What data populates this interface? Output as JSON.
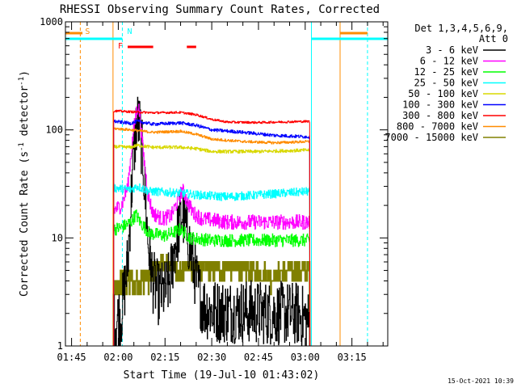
{
  "chart_data": {
    "type": "line",
    "title": "RHESSI Observing Summary Count Rates, Corrected",
    "xlabel": "Start Time (19-Jul-10 01:43:02)",
    "ylabel_main": "Corrected Count Rate (s",
    "ylabel_sup1": "-1",
    "ylabel_mid": " detector",
    "ylabel_sup2": "-1",
    "ylabel_end": ")",
    "y_scale": "log",
    "ylim": [
      1,
      1000
    ],
    "y_ticks": [
      {
        "value": 1,
        "label": "1"
      },
      {
        "value": 10,
        "label": "10"
      },
      {
        "value": 100,
        "label": "100"
      },
      {
        "value": 1000,
        "label": "1000"
      }
    ],
    "x_ticks": [
      {
        "min": 105,
        "label": "01:45"
      },
      {
        "min": 120,
        "label": "02:00"
      },
      {
        "min": 135,
        "label": "02:15"
      },
      {
        "min": 150,
        "label": "02:30"
      },
      {
        "min": 165,
        "label": "02:45"
      },
      {
        "min": 180,
        "label": "03:00"
      },
      {
        "min": 195,
        "label": "03:15"
      }
    ],
    "x_range_min": [
      103.03,
      206.5
    ],
    "legend_placement": "right",
    "detectors": "Det 1,3,4,5,6,9,",
    "attenuator": "Att 0",
    "date_stamp": "15-Oct-2021 10:39",
    "series": [
      {
        "name": "3 - 6 keV",
        "color": "#000000",
        "noise": 0.3,
        "points": [
          [
            118.5,
            1.6
          ],
          [
            121,
            2.0
          ],
          [
            123,
            6
          ],
          [
            124.5,
            40
          ],
          [
            125.6,
            105
          ],
          [
            126.3,
            120
          ],
          [
            127,
            100
          ],
          [
            128,
            45
          ],
          [
            129.5,
            9
          ],
          [
            131,
            4
          ],
          [
            133,
            3
          ],
          [
            135,
            3.2
          ],
          [
            136.5,
            4
          ],
          [
            138,
            8
          ],
          [
            139.5,
            13
          ],
          [
            140.5,
            17
          ],
          [
            141.5,
            13
          ],
          [
            143,
            8
          ],
          [
            145,
            4
          ],
          [
            147,
            2.4
          ],
          [
            150,
            2.1
          ],
          [
            160,
            2.1
          ],
          [
            170,
            2.0
          ],
          [
            177,
            2.0
          ],
          [
            180,
            1.8
          ],
          [
            181.5,
            1.6
          ]
        ]
      },
      {
        "name": "6 - 12 keV",
        "color": "#ff00ff",
        "noise": 0.07,
        "points": [
          [
            118.5,
            18
          ],
          [
            121,
            20
          ],
          [
            123,
            30
          ],
          [
            124.5,
            80
          ],
          [
            125.6,
            140
          ],
          [
            126.3,
            170
          ],
          [
            127,
            130
          ],
          [
            128,
            60
          ],
          [
            129.5,
            25
          ],
          [
            131,
            17
          ],
          [
            134,
            15
          ],
          [
            137,
            16
          ],
          [
            139,
            22
          ],
          [
            140.5,
            28
          ],
          [
            142,
            22
          ],
          [
            144,
            17
          ],
          [
            147,
            15
          ],
          [
            155,
            14
          ],
          [
            170,
            14
          ],
          [
            177,
            14
          ],
          [
            181.5,
            14
          ]
        ]
      },
      {
        "name": "12 - 25 keV",
        "color": "#00ff00",
        "noise": 0.06,
        "points": [
          [
            118.5,
            12
          ],
          [
            121,
            12.5
          ],
          [
            124,
            14
          ],
          [
            125.6,
            16.5
          ],
          [
            127,
            14
          ],
          [
            130,
            11
          ],
          [
            135,
            10.5
          ],
          [
            140,
            12
          ],
          [
            143,
            10
          ],
          [
            150,
            9.5
          ],
          [
            165,
            9.5
          ],
          [
            181.5,
            9.5
          ]
        ]
      },
      {
        "name": "25 - 50 keV",
        "color": "#00ffff",
        "noise": 0.04,
        "points": [
          [
            118.5,
            29
          ],
          [
            124,
            28
          ],
          [
            126,
            30
          ],
          [
            130,
            27
          ],
          [
            140,
            26
          ],
          [
            145,
            25
          ],
          [
            155,
            24
          ],
          [
            165,
            25
          ],
          [
            181.5,
            27
          ]
        ]
      },
      {
        "name": "50 - 100 keV",
        "color": "#d8d800",
        "noise": 0.015,
        "points": [
          [
            118.5,
            70
          ],
          [
            124,
            69
          ],
          [
            126,
            72
          ],
          [
            131,
            69
          ],
          [
            140,
            69
          ],
          [
            145,
            67
          ],
          [
            150,
            63
          ],
          [
            165,
            63
          ],
          [
            181.5,
            65
          ]
        ]
      },
      {
        "name": "100 - 300 keV",
        "color": "#0000ff",
        "noise": 0.015,
        "points": [
          [
            118.5,
            120
          ],
          [
            124,
            115
          ],
          [
            126,
            120
          ],
          [
            131,
            113
          ],
          [
            140,
            116
          ],
          [
            145,
            110
          ],
          [
            150,
            100
          ],
          [
            160,
            95
          ],
          [
            170,
            89
          ],
          [
            181.5,
            86
          ]
        ]
      },
      {
        "name": "300 - 800 keV",
        "color": "#ff0000",
        "noise": 0.01,
        "points": [
          [
            118.5,
            150
          ],
          [
            124,
            147
          ],
          [
            131,
            144
          ],
          [
            140,
            145
          ],
          [
            145,
            138
          ],
          [
            150,
            125
          ],
          [
            155,
            118
          ],
          [
            165,
            117
          ],
          [
            181.5,
            120
          ]
        ]
      },
      {
        "name": "800 - 7000 keV",
        "color": "#ff8c00",
        "noise": 0.012,
        "points": [
          [
            118.5,
            103
          ],
          [
            124,
            100
          ],
          [
            131,
            95
          ],
          [
            140,
            97
          ],
          [
            145,
            91
          ],
          [
            150,
            82
          ],
          [
            160,
            78
          ],
          [
            170,
            76
          ],
          [
            181.5,
            78
          ]
        ]
      },
      {
        "name": "7000 - 15000 keV",
        "color": "#808000",
        "step": 1,
        "points": [
          [
            118.5,
            3
          ],
          [
            121,
            4
          ],
          [
            127,
            4
          ],
          [
            130,
            4.5
          ],
          [
            134,
            6
          ],
          [
            137,
            5.5
          ],
          [
            140,
            5
          ],
          [
            145,
            5.5
          ],
          [
            150,
            5
          ],
          [
            155,
            5.5
          ],
          [
            160,
            5
          ],
          [
            170,
            4.5
          ],
          [
            177,
            5
          ],
          [
            181.5,
            5
          ]
        ]
      }
    ],
    "flag_lines": [
      {
        "label": "S",
        "color": "#ff8c00",
        "x_min": 107.8,
        "dashed": true
      },
      {
        "label": "",
        "color": "#ff8c00",
        "x_min": 118.3,
        "dashed": false
      },
      {
        "label": "N",
        "color": "#00ffff",
        "x_min": 121.3,
        "dashed": true
      },
      {
        "label": "",
        "color": "#00ffff",
        "x_min": 182.0,
        "dashed": false
      },
      {
        "label": "",
        "color": "#ff8c00",
        "x_min": 191.2,
        "dashed": false
      },
      {
        "label": "",
        "color": "#00ffff",
        "x_min": 200.0,
        "dashed": true
      }
    ],
    "state_bars": [
      {
        "label": "",
        "color": "#ff8c00",
        "from": 103.03,
        "to": 108.5,
        "level": 1
      },
      {
        "label": "",
        "color": "#00ffff",
        "from": 103.03,
        "to": 121.3,
        "level": 2
      },
      {
        "label": "",
        "color": "#00ffff",
        "from": 182.0,
        "to": 206.5,
        "level": 2
      },
      {
        "label": "",
        "color": "#ff8c00",
        "from": 191.2,
        "to": 200.0,
        "level": 1
      }
    ],
    "flare_marker": {
      "label": "F",
      "color": "#ff0000",
      "spans": [
        [
          123.0,
          131.2
        ],
        [
          142.0,
          145.0
        ]
      ]
    }
  }
}
